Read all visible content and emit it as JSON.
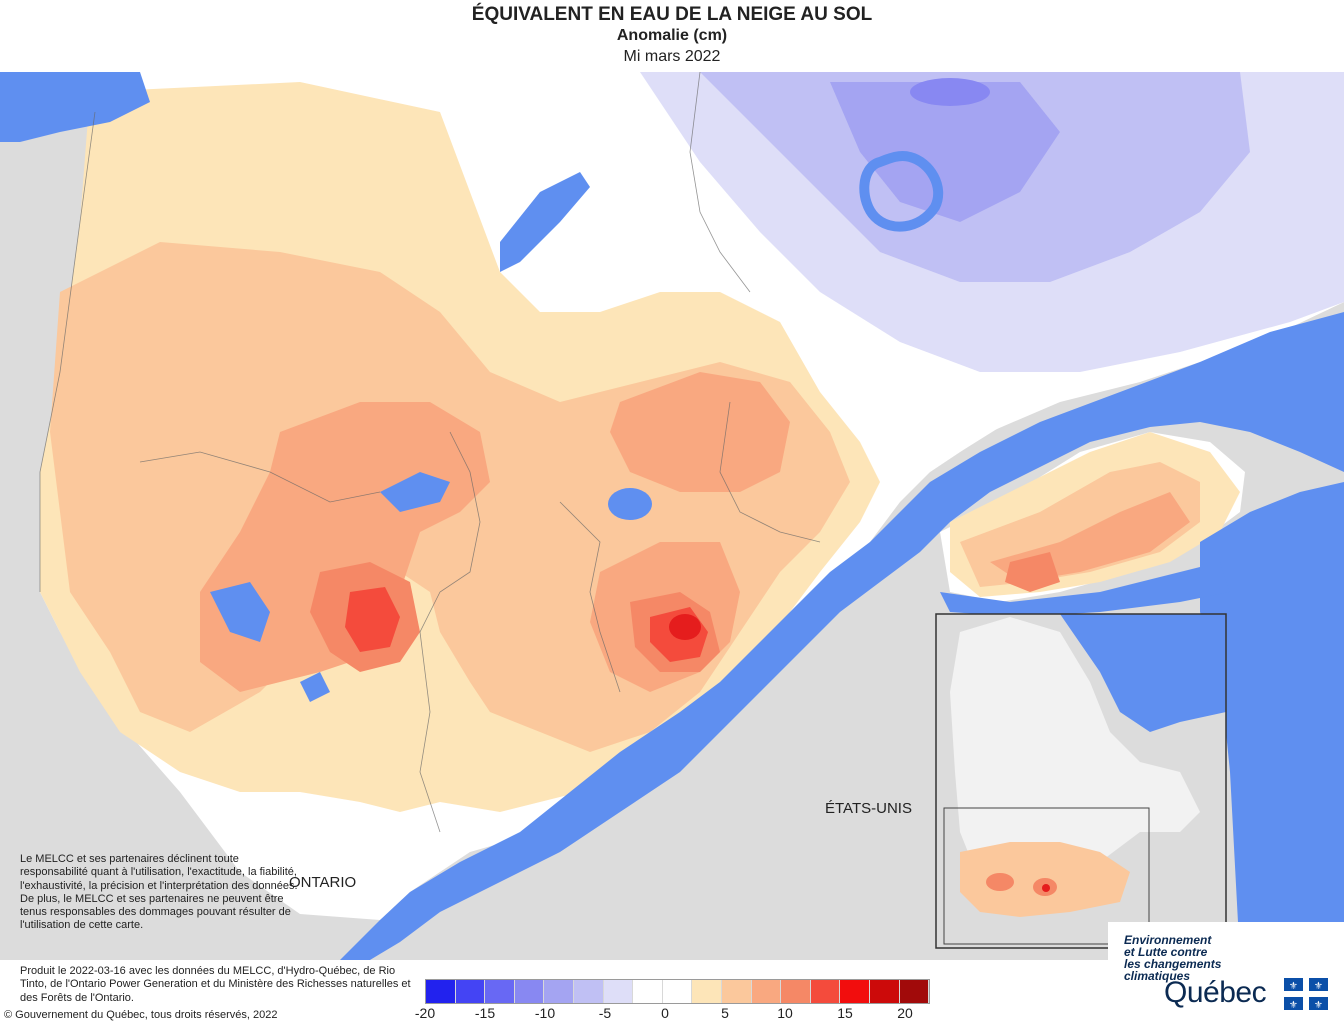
{
  "header": {
    "title": "ÉQUIVALENT EN EAU DE LA NEIGE AU SOL",
    "subtitle": "Anomalie (cm)",
    "date": "Mi mars 2022"
  },
  "map_labels": {
    "ontario": "ONTARIO",
    "usa": "ÉTATS-UNIS"
  },
  "disclaimer": "Le MELCC et ses partenaires déclinent toute responsabilité quant à l'utilisation, l'exactitude, la fiabilité, l'exhaustivité, la précision et l'interprétation des données. De plus, le MELCC et ses partenaires ne peuvent être tenus responsables des dommages pouvant résulter de l'utilisation de cette carte.",
  "credits": {
    "produced": "Produit le 2022-03-16 avec les données du MELCC, d'Hydro-Québec, de Rio Tinto, de l'Ontario Power Generation et du Ministère des Richesses naturelles et des Forêts de l'Ontario.",
    "copyright": "© Gouvernement du Québec, tous droits réservés, 2022"
  },
  "legend": {
    "colors": [
      "#2222ee",
      "#4444f4",
      "#6868f4",
      "#8888f2",
      "#a4a4f2",
      "#c0c0f4",
      "#dedef8",
      "#ffffff",
      "#ffffff",
      "#fde5b8",
      "#fbc89c",
      "#f9a880",
      "#f58866",
      "#f44b3c",
      "#f20d0d",
      "#cc0a0a",
      "#a10a0a"
    ],
    "ticks": [
      "-20",
      "-15",
      "-10",
      "-5",
      "0",
      "5",
      "10",
      "15",
      "20"
    ]
  },
  "logo": {
    "ministry_line1": "Environnement",
    "ministry_line2": "et Lutte contre",
    "ministry_line3": "les changements",
    "ministry_line4": "climatiques",
    "wordmark": "Québec"
  },
  "palette": {
    "water": "#5f8ff0",
    "land_outside": "#dcdcdc",
    "anomaly_pos_1": "#fde5b8",
    "anomaly_pos_2": "#fbc89c",
    "anomaly_pos_3": "#f9a880",
    "anomaly_pos_4": "#f58866",
    "anomaly_pos_5": "#f44b3c",
    "anomaly_pos_6": "#e51d1d",
    "anomaly_neg_1": "#dedef8",
    "anomaly_neg_2": "#c0c0f4",
    "anomaly_neg_3": "#a4a4f2"
  }
}
